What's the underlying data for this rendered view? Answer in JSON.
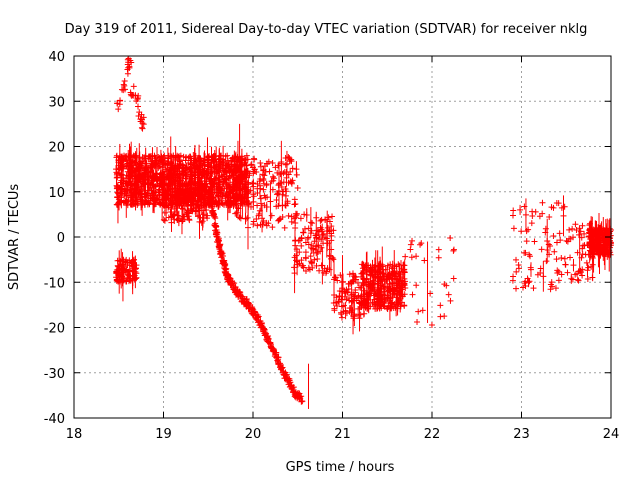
{
  "chart_data": {
    "type": "scatter",
    "title": "Day 319 of 2011, Sidereal Day-to-day VTEC variation (SDTVAR) for receiver nklg",
    "xlabel": "GPS time / hours",
    "ylabel": "SDTVAR / TECUs",
    "xlim": [
      18,
      24
    ],
    "ylim": [
      -40,
      40
    ],
    "xticks": [
      18,
      19,
      20,
      21,
      22,
      23,
      24
    ],
    "yticks": [
      -40,
      -30,
      -20,
      -10,
      0,
      10,
      20,
      30,
      40
    ],
    "grid": true,
    "marker": "plus",
    "series": [
      {
        "name": "SDTVAR",
        "color": "#ff0000",
        "segments": [
          {
            "x0": 18.47,
            "x1": 19.95,
            "ymin": 7,
            "ymax": 18,
            "count": 1400
          },
          {
            "x0": 18.47,
            "x1": 18.7,
            "ymin": -10,
            "ymax": -5,
            "count": 120
          },
          {
            "x0": 19.0,
            "x1": 19.5,
            "ymin": 3,
            "ymax": 12,
            "count": 150
          },
          {
            "x0": 19.8,
            "x1": 20.5,
            "ymin": 2,
            "ymax": 18,
            "count": 180
          },
          {
            "x0": 20.45,
            "x1": 20.9,
            "ymin": -8,
            "ymax": 5,
            "count": 120
          },
          {
            "x0": 20.9,
            "x1": 21.25,
            "ymin": -18,
            "ymax": -8,
            "count": 100
          },
          {
            "x0": 21.2,
            "x1": 21.7,
            "ymin": -16,
            "ymax": -6,
            "count": 320
          },
          {
            "x0": 21.7,
            "x1": 22.3,
            "ymin": -20,
            "ymax": 0,
            "count": 30
          },
          {
            "x0": 22.9,
            "x1": 23.5,
            "ymin": -12,
            "ymax": 8,
            "count": 80
          },
          {
            "x0": 23.5,
            "x1": 23.8,
            "ymin": -10,
            "ymax": 3,
            "count": 50
          },
          {
            "x0": 23.75,
            "x1": 24.0,
            "ymin": -4,
            "ymax": 2,
            "count": 260
          }
        ],
        "trend_curve": [
          {
            "x": 19.5,
            "y": 10
          },
          {
            "x": 19.55,
            "y": 6
          },
          {
            "x": 19.6,
            "y": 0
          },
          {
            "x": 19.65,
            "y": -4
          },
          {
            "x": 19.7,
            "y": -8
          },
          {
            "x": 19.75,
            "y": -10
          },
          {
            "x": 19.85,
            "y": -13
          },
          {
            "x": 19.95,
            "y": -15
          },
          {
            "x": 20.05,
            "y": -18
          },
          {
            "x": 20.15,
            "y": -22
          },
          {
            "x": 20.25,
            "y": -26
          },
          {
            "x": 20.35,
            "y": -30
          },
          {
            "x": 20.45,
            "y": -34
          },
          {
            "x": 20.55,
            "y": -36
          }
        ],
        "early_cluster": [
          {
            "x": 18.5,
            "y": 29
          },
          {
            "x": 18.55,
            "y": 33
          },
          {
            "x": 18.6,
            "y": 37
          },
          {
            "x": 18.62,
            "y": 40
          },
          {
            "x": 18.65,
            "y": 32
          },
          {
            "x": 18.7,
            "y": 30
          },
          {
            "x": 18.74,
            "y": 27
          },
          {
            "x": 18.76,
            "y": 25
          }
        ]
      }
    ]
  }
}
